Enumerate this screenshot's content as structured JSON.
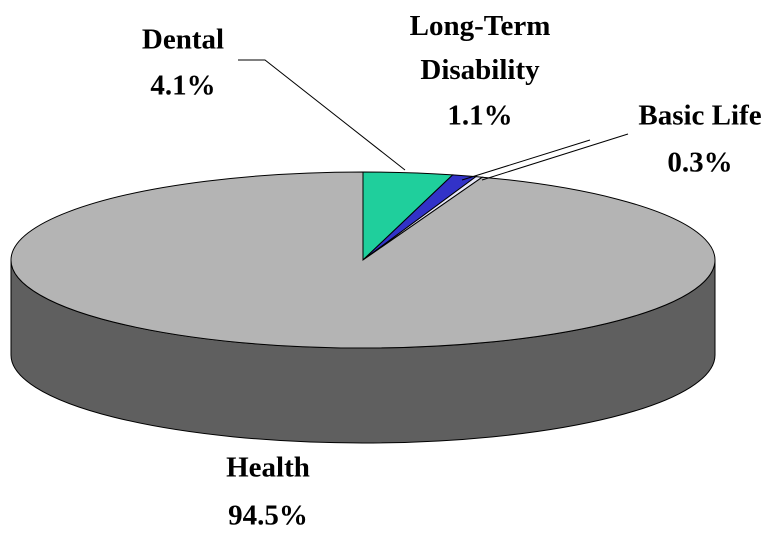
{
  "chart_data": {
    "type": "pie",
    "categories": [
      "Dental",
      "Long-Term Disability",
      "Basic Life",
      "Health"
    ],
    "values": [
      4.1,
      1.1,
      0.3,
      94.5
    ],
    "value_labels": [
      "4.1%",
      "1.1%",
      "0.3%",
      "94.5%"
    ],
    "colors": [
      "#1fcf9c",
      "#3232c8",
      "#e8e8f8",
      "#b4b4b4"
    ]
  }
}
